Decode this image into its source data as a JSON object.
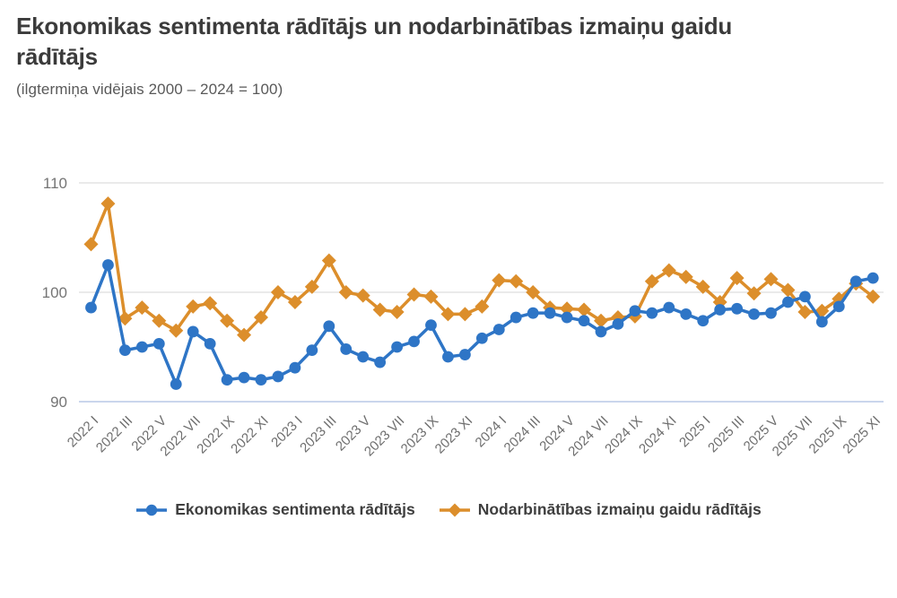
{
  "header": {
    "title": "Ekonomikas sentimenta rādītājs un nodarbinātības izmaiņu gaidu rādītājs",
    "subtitle": "(ilgtermiņa vidējais 2000 – 2024 = 100)"
  },
  "colors": {
    "blue": "#2E75C6",
    "orange": "#DC8E2B",
    "gridline": "#DEDEDE",
    "baseline": "#B9C9E6",
    "axis_text": "#757575",
    "xtick_text": "#6E6E6E"
  },
  "chart_data": {
    "type": "line",
    "title": "Ekonomikas sentimenta rādītājs un nodarbinātības izmaiņu gaidu rādītājs",
    "subtitle": "(ilgtermiņa vidējais 2000 – 2024 = 100)",
    "xlabel": "",
    "ylabel": "",
    "ylim": [
      90,
      110
    ],
    "yticks": [
      90,
      100,
      110
    ],
    "grid": "horizontal",
    "legend_position": "bottom",
    "categories": [
      "2022 I",
      "2022 II",
      "2022 III",
      "2022 IV",
      "2022 V",
      "2022 VI",
      "2022 VII",
      "2022 VIII",
      "2022 IX",
      "2022 X",
      "2022 XI",
      "2022 XII",
      "2023 I",
      "2023 II",
      "2023 III",
      "2023 IV",
      "2023 V",
      "2023 VI",
      "2023 VII",
      "2023 VIII",
      "2023 IX",
      "2023 X",
      "2023 XI",
      "2023 XII",
      "2024 I",
      "2024 II",
      "2024 III",
      "2024 IV",
      "2024 V",
      "2024 VI",
      "2024 VII",
      "2024 VIII",
      "2024 IX",
      "2024 X",
      "2024 XI",
      "2024 XII",
      "2025 I",
      "2025 II",
      "2025 III",
      "2025 IV",
      "2025 V",
      "2025 VI",
      "2025 VII",
      "2025 VIII",
      "2025 IX",
      "2025 X",
      "2025 XI"
    ],
    "xtick_labels": [
      "2022 I",
      "2022 III",
      "2022 V",
      "2022 VII",
      "2022 IX",
      "2022 XI",
      "2023 I",
      "2023 III",
      "2023 V",
      "2023 VII",
      "2023 IX",
      "2023 XI",
      "2024 I",
      "2024 III",
      "2024 V",
      "2024 VII",
      "2024 IX",
      "2024 XI",
      "2025 I",
      "2025 III",
      "2025 V",
      "2025 VII",
      "2025 IX",
      "2025 XI"
    ],
    "series": [
      {
        "name": "Ekonomikas sentimenta rādītājs",
        "marker": "circle",
        "color": "#2E75C6",
        "values": [
          98.6,
          102.5,
          94.7,
          95.0,
          95.3,
          91.6,
          96.4,
          95.3,
          92.0,
          92.2,
          92.0,
          92.3,
          93.1,
          94.7,
          96.9,
          94.8,
          94.1,
          93.6,
          95.0,
          95.5,
          97.0,
          94.1,
          94.3,
          95.8,
          96.6,
          97.7,
          98.1,
          98.1,
          97.7,
          97.4,
          96.4,
          97.1,
          98.3,
          98.1,
          98.6,
          98.0,
          97.4,
          98.4,
          98.5,
          98.0,
          98.1,
          99.1,
          99.6,
          97.3,
          98.7,
          101.0,
          101.3
        ]
      },
      {
        "name": "Nodarbinātības izmaiņu gaidu rādītājs",
        "marker": "diamond",
        "color": "#DC8E2B",
        "values": [
          104.4,
          108.1,
          97.6,
          98.6,
          97.4,
          96.5,
          98.7,
          99.0,
          97.4,
          96.1,
          97.7,
          100.0,
          99.1,
          100.5,
          102.9,
          100.0,
          99.7,
          98.4,
          98.2,
          99.8,
          99.6,
          98.0,
          98.0,
          98.7,
          101.1,
          101.0,
          100.0,
          98.6,
          98.5,
          98.4,
          97.4,
          97.7,
          97.8,
          101.0,
          102.0,
          101.4,
          100.5,
          99.1,
          101.3,
          99.9,
          101.2,
          100.2,
          98.2,
          98.3,
          99.4,
          100.8,
          99.6
        ]
      }
    ]
  }
}
